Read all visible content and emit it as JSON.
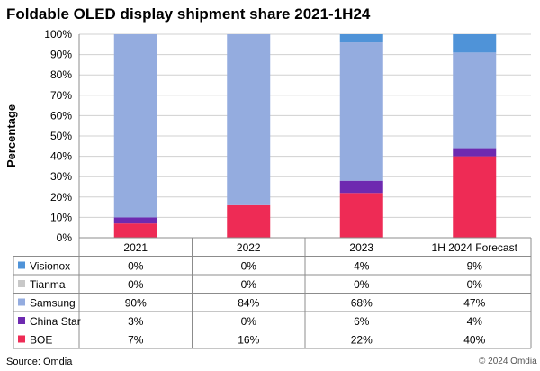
{
  "source": "Source: Omdia",
  "copyright": "© 2024 Omdia",
  "chart_data": {
    "type": "bar",
    "stacked": true,
    "title": "Foldable OLED display shipment share 2021-1H24",
    "ylabel": "Percentage",
    "xlabel": "",
    "ylim": [
      0,
      100
    ],
    "yticks": [
      "0%",
      "10%",
      "20%",
      "30%",
      "40%",
      "50%",
      "60%",
      "70%",
      "80%",
      "90%",
      "100%"
    ],
    "grid": true,
    "legend_placement": "table-left",
    "categories": [
      "2021",
      "2022",
      "2023",
      "1H 2024 Forecast"
    ],
    "series": [
      {
        "name": "Visionox",
        "color": "#4f93d8",
        "values": [
          0,
          0,
          4,
          9
        ],
        "labels": [
          "0%",
          "0%",
          "4%",
          "9%"
        ]
      },
      {
        "name": "Tianma",
        "color": "#c8c8c8",
        "values": [
          0,
          0,
          0,
          0
        ],
        "labels": [
          "0%",
          "0%",
          "0%",
          "0%"
        ]
      },
      {
        "name": "Samsung",
        "color": "#94acdf",
        "values": [
          90,
          84,
          68,
          47
        ],
        "labels": [
          "90%",
          "84%",
          "68%",
          "47%"
        ]
      },
      {
        "name": "China Star",
        "color": "#6e2ab0",
        "values": [
          3,
          0,
          6,
          4
        ],
        "labels": [
          "3%",
          "0%",
          "6%",
          "4%"
        ]
      },
      {
        "name": "BOE",
        "color": "#ee2b55",
        "values": [
          7,
          16,
          22,
          40
        ],
        "labels": [
          "7%",
          "16%",
          "22%",
          "40%"
        ]
      }
    ]
  }
}
